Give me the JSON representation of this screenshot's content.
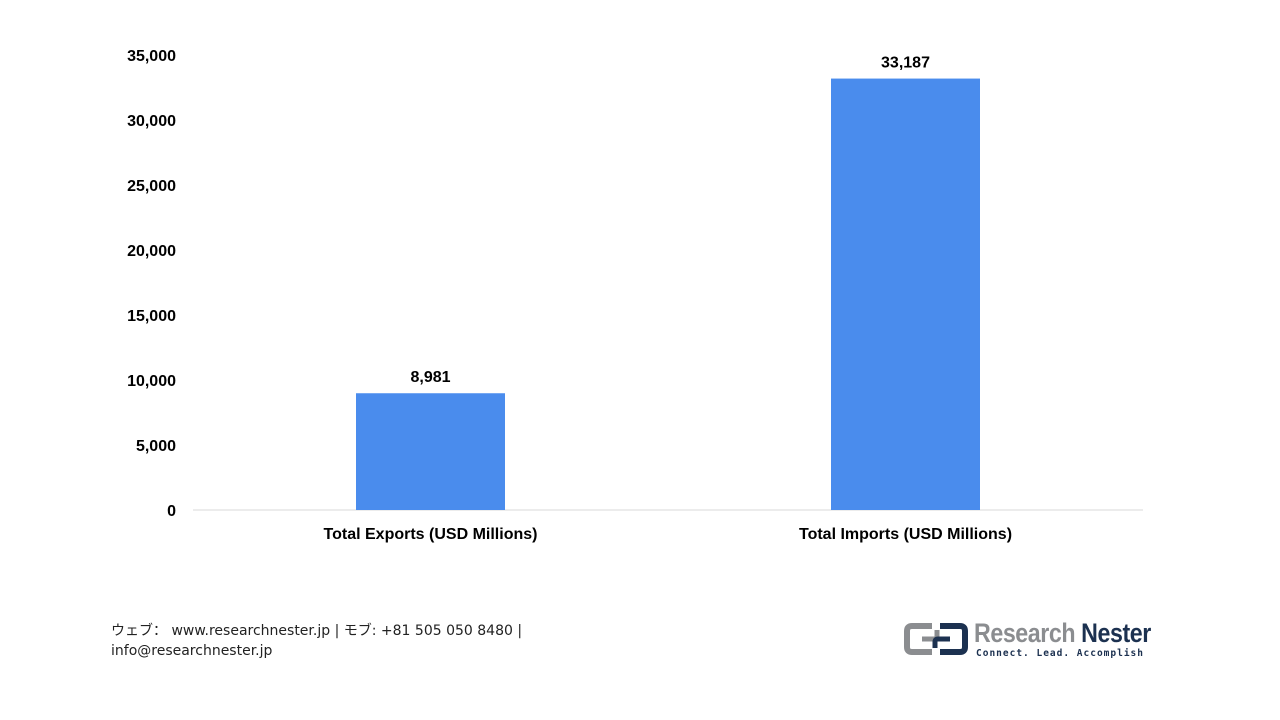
{
  "chart_data": {
    "type": "bar",
    "categories": [
      "Total Exports (USD Millions)",
      "Total Imports (USD Millions)"
    ],
    "values": [
      8981,
      33187
    ],
    "value_labels": [
      "8,981",
      "33,187"
    ],
    "title": "",
    "xlabel": "",
    "ylabel": "",
    "ylim": [
      0,
      35000
    ],
    "yticks": [
      0,
      5000,
      10000,
      15000,
      20000,
      25000,
      30000,
      35000
    ],
    "ytick_labels": [
      "0",
      "5,000",
      "10,000",
      "15,000",
      "20,000",
      "25,000",
      "30,000",
      "35,000"
    ],
    "grid": false,
    "bar_color": "#4a8ced"
  },
  "footer": {
    "web_label": "ウェブ：",
    "web_url": "www.researchnester.jp",
    "phone_label": "| モブ: +81 505 050 8480 |",
    "email": "info@researchnester.jp"
  },
  "logo": {
    "name_part1": "Research",
    "name_part2": "Nester",
    "tagline": "Connect. Lead. Accomplish"
  }
}
